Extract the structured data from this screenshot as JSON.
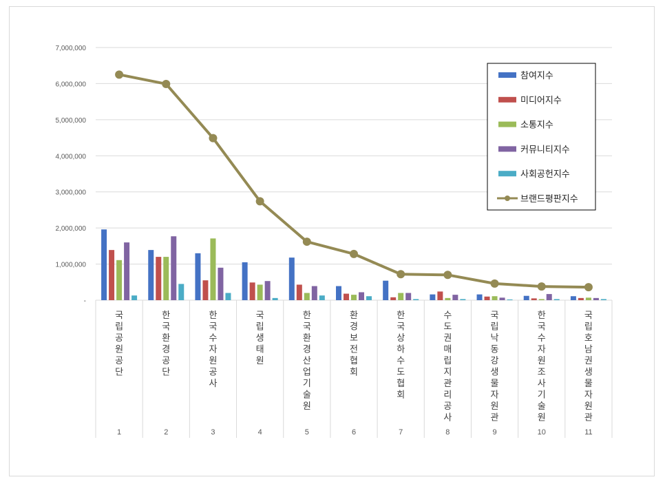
{
  "chart_data": {
    "type": "bar",
    "title": "",
    "xlabel": "",
    "ylabel": "",
    "ylim": [
      0,
      7000000
    ],
    "yticks": [
      "-",
      "1,000,000",
      "2,000,000",
      "3,000,000",
      "4,000,000",
      "5,000,000",
      "6,000,000",
      "7,000,000"
    ],
    "grid": true,
    "legend_position": "top-right",
    "ranks": [
      "1",
      "2",
      "3",
      "4",
      "5",
      "6",
      "7",
      "8",
      "9",
      "10",
      "11"
    ],
    "categories": [
      "국립공원공단",
      "한국환경공단",
      "한국수자원공사",
      "국립생태원",
      "한국환경산업기술원",
      "환경보전협회",
      "한국상하수도협회",
      "수도권매립지관리공사",
      "국립낙동강생물자원관",
      "한국수자원조사기술원",
      "국립호남권생물자원관"
    ],
    "series": [
      {
        "name": "참여지수",
        "kind": "bar",
        "color": "#4472c4",
        "values": [
          1960000,
          1390000,
          1300000,
          1050000,
          1180000,
          390000,
          540000,
          160000,
          160000,
          120000,
          110000
        ]
      },
      {
        "name": "미디어지수",
        "kind": "bar",
        "color": "#c0504d",
        "values": [
          1390000,
          1200000,
          550000,
          490000,
          430000,
          180000,
          80000,
          240000,
          100000,
          50000,
          60000
        ]
      },
      {
        "name": "소통지수",
        "kind": "bar",
        "color": "#9bbb59",
        "values": [
          1110000,
          1200000,
          1710000,
          430000,
          200000,
          150000,
          200000,
          60000,
          110000,
          30000,
          70000
        ]
      },
      {
        "name": "커뮤니티지수",
        "kind": "bar",
        "color": "#8064a2",
        "values": [
          1600000,
          1770000,
          900000,
          530000,
          390000,
          220000,
          200000,
          150000,
          70000,
          170000,
          60000
        ]
      },
      {
        "name": "사회공헌지수",
        "kind": "bar",
        "color": "#4bacc6",
        "values": [
          130000,
          450000,
          200000,
          60000,
          130000,
          110000,
          30000,
          30000,
          20000,
          30000,
          30000
        ]
      },
      {
        "name": "브랜드평판지수",
        "kind": "line",
        "color": "#948a54",
        "values": [
          6250000,
          5990000,
          4490000,
          2740000,
          1620000,
          1280000,
          720000,
          700000,
          460000,
          380000,
          360000
        ]
      }
    ]
  }
}
